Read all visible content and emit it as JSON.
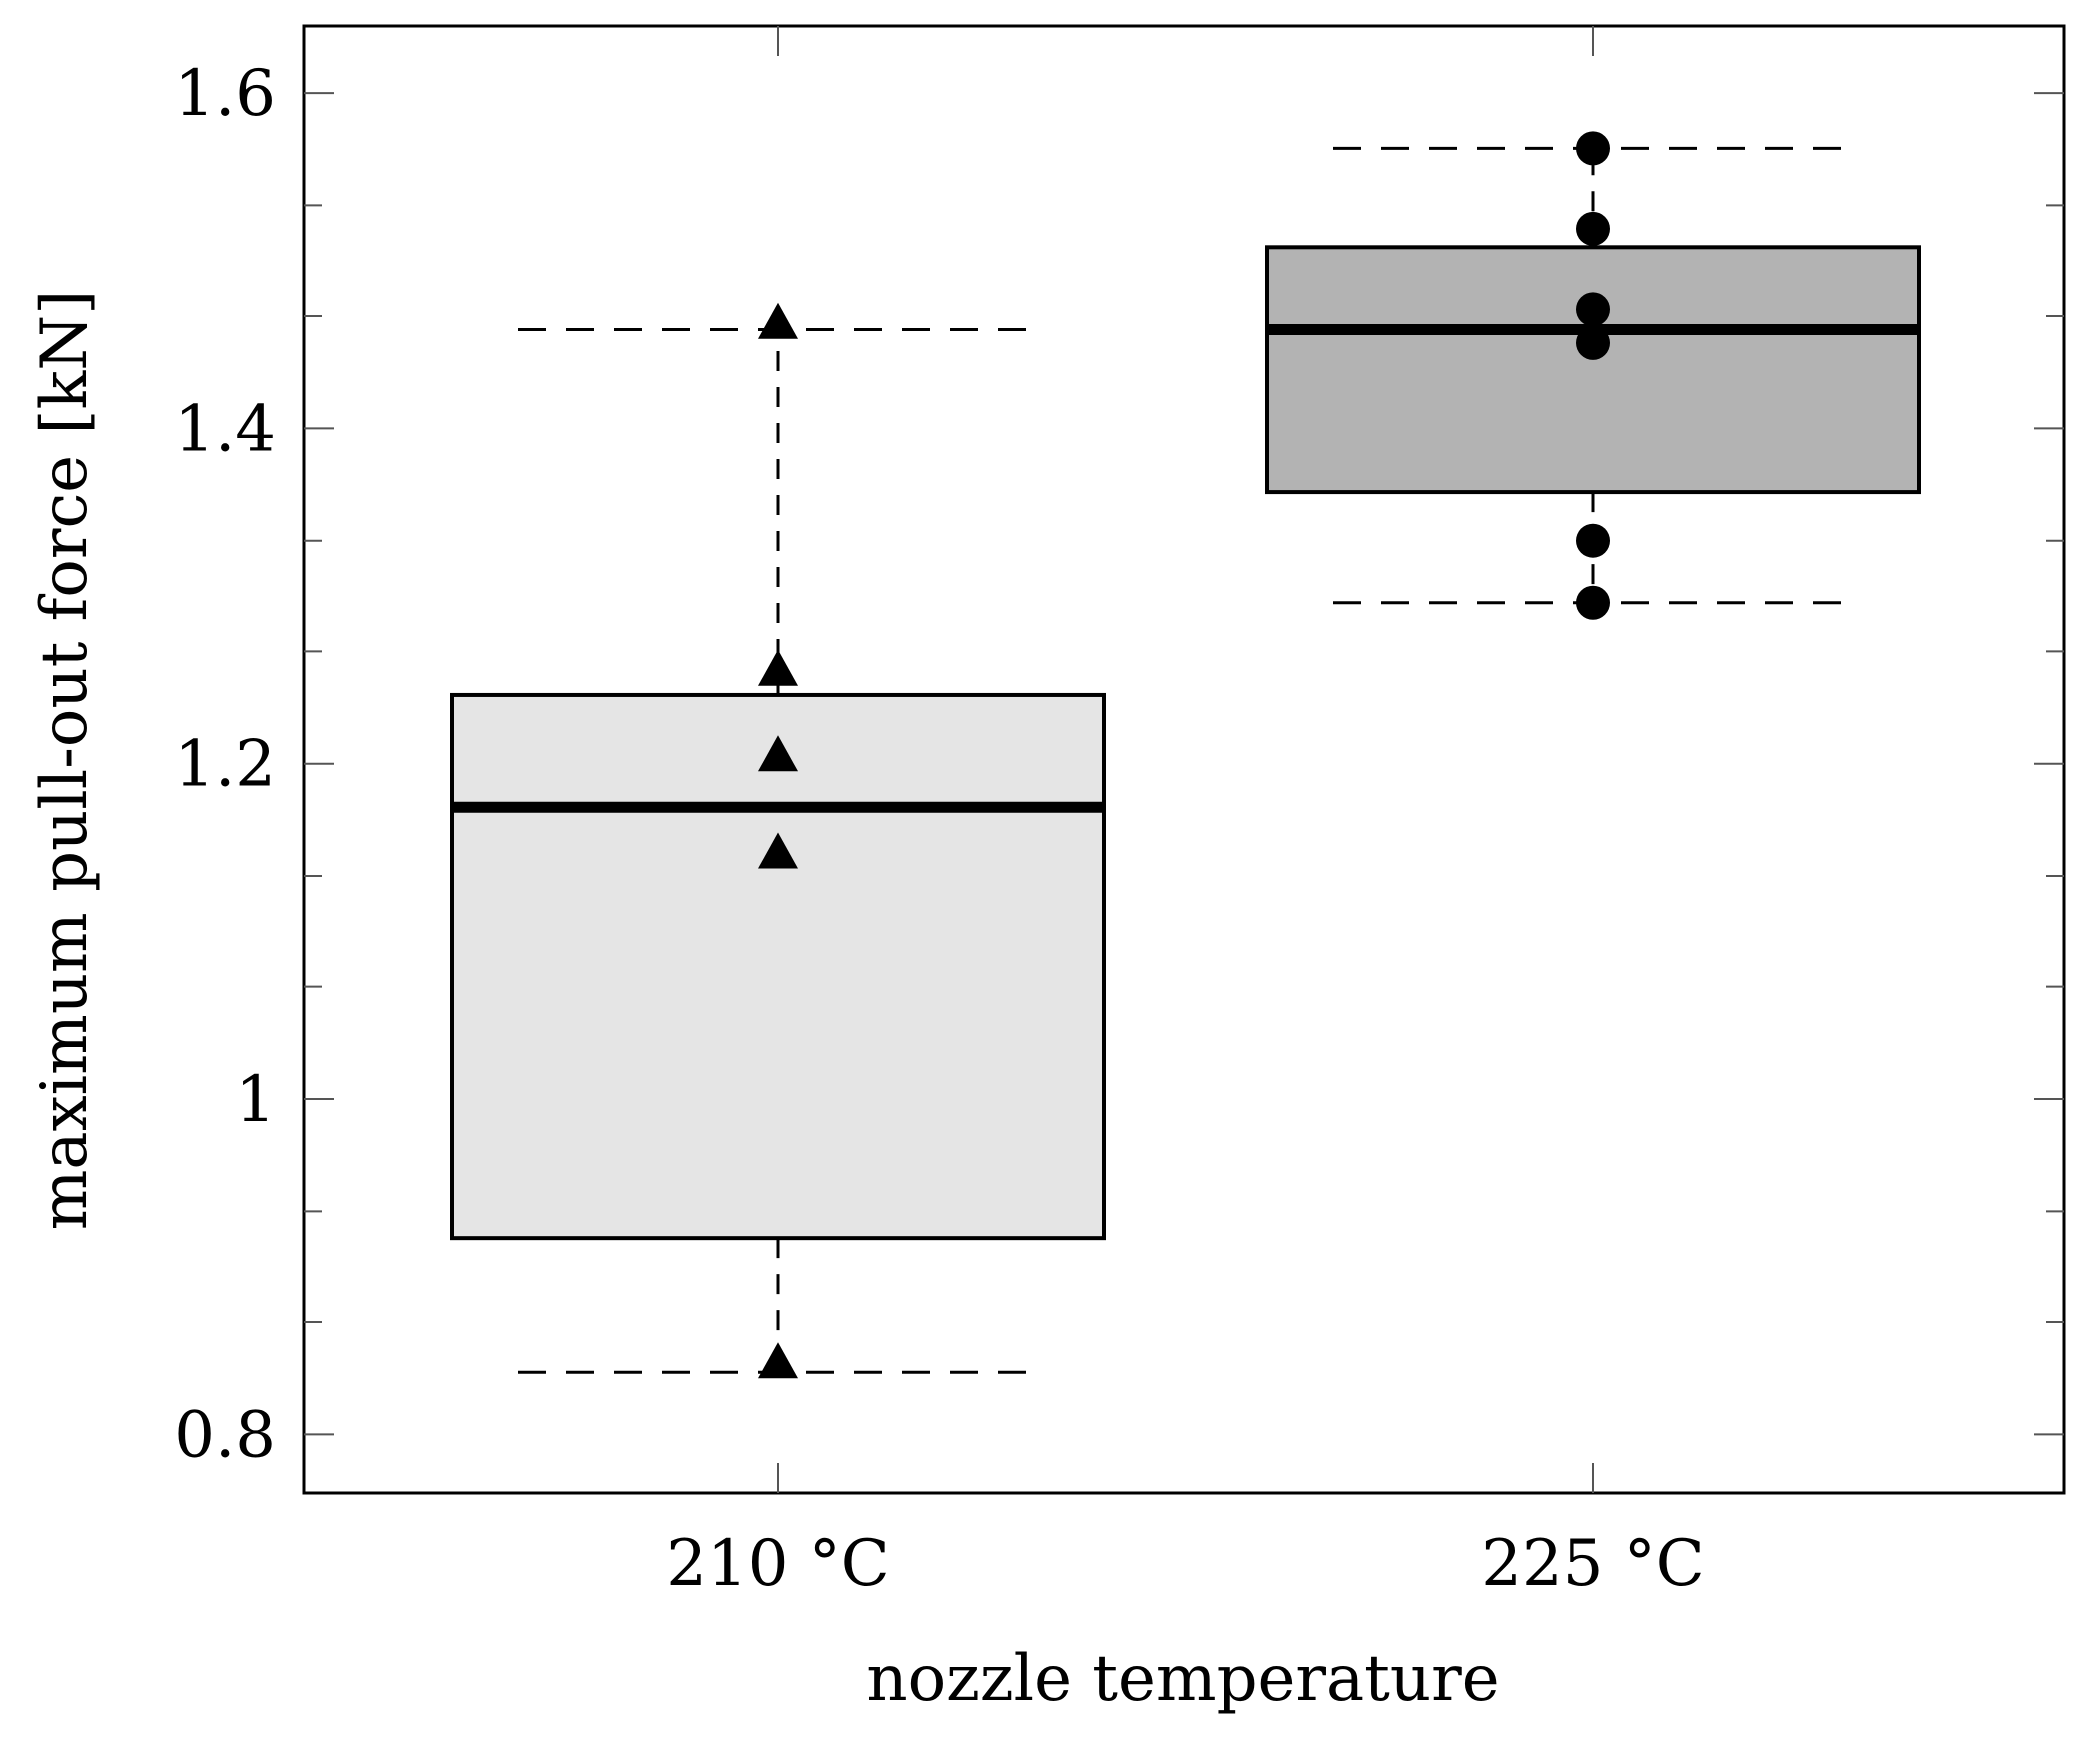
{
  "chart_data": {
    "type": "box",
    "xlabel": "nozzle temperature",
    "ylabel": "maximum pull-out force [kN]",
    "ylim": [
      0.765,
      1.64
    ],
    "yticks": [
      {
        "value": 0.8,
        "label": "0.8"
      },
      {
        "value": 1.0,
        "label": "1"
      },
      {
        "value": 1.2,
        "label": "1.2"
      },
      {
        "value": 1.4,
        "label": "1.4"
      },
      {
        "value": 1.6,
        "label": "1.6"
      }
    ],
    "y_minor_ticks": [
      0.867,
      0.933,
      1.067,
      1.133,
      1.267,
      1.333,
      1.467,
      1.533
    ],
    "grid": false,
    "categories": [
      "210 °C",
      "225 °C"
    ],
    "boxes": [
      {
        "category": "210 °C",
        "whisker_low": 0.837,
        "q1": 0.917,
        "median": 1.174,
        "q3": 1.241,
        "whisker_high": 1.459,
        "box_color": "#e5e5e5",
        "marker": "triangle",
        "points": [
          0.843,
          1.147,
          1.205,
          1.256,
          1.463
        ]
      },
      {
        "category": "225 °C",
        "whisker_low": 1.296,
        "q1": 1.362,
        "median": 1.459,
        "q3": 1.508,
        "whisker_high": 1.567,
        "box_color": "#b3b3b3",
        "marker": "circle",
        "points": [
          1.296,
          1.333,
          1.451,
          1.471,
          1.519,
          1.567
        ]
      }
    ]
  }
}
